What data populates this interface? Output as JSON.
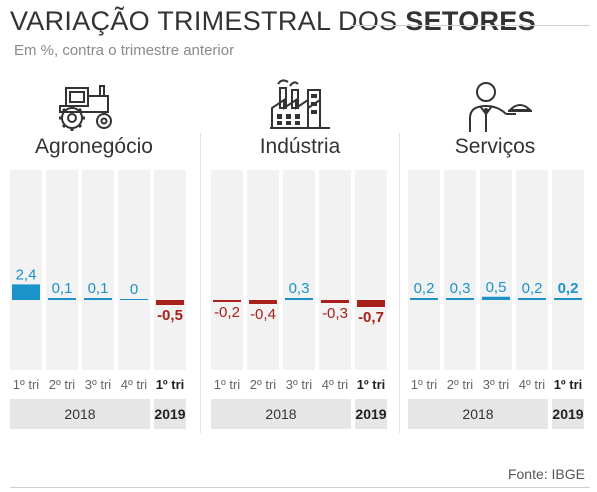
{
  "header": {
    "title_regular": "VARIAÇÃO TRIMESTRAL DOS ",
    "title_bold": "SETORES",
    "subtitle": "Em %, contra o trimestre anterior"
  },
  "source": "Fonte: IBGE",
  "colors": {
    "positive": "#1b93c9",
    "negative": "#a8201a",
    "column_bg": "#f2f2f2",
    "year_band": "#e6e6e6"
  },
  "icons": [
    "tractor-icon",
    "factory-icon",
    "waiter-icon"
  ],
  "chart_data": [
    {
      "type": "bar",
      "title": "Agronegócio",
      "categories": [
        "1º tri",
        "2º tri",
        "3º tri",
        "4º tri",
        "1º tri"
      ],
      "years": [
        "2018",
        "2019"
      ],
      "values": [
        2.4,
        0.1,
        0.1,
        0,
        -0.5
      ],
      "labels": [
        "2,4",
        "0,1",
        "0,1",
        "0",
        "-0,5"
      ]
    },
    {
      "type": "bar",
      "title": "Indústria",
      "categories": [
        "1º tri",
        "2º tri",
        "3º tri",
        "4º tri",
        "1º tri"
      ],
      "years": [
        "2018",
        "2019"
      ],
      "values": [
        -0.2,
        -0.4,
        0.3,
        -0.3,
        -0.7
      ],
      "labels": [
        "-0,2",
        "-0,4",
        "0,3",
        "-0,3",
        "-0,7"
      ]
    },
    {
      "type": "bar",
      "title": "Serviços",
      "categories": [
        "1º tri",
        "2º tri",
        "3º tri",
        "4º tri",
        "1º tri"
      ],
      "years": [
        "2018",
        "2019"
      ],
      "values": [
        0.2,
        0.3,
        0.5,
        0.2,
        0.2
      ],
      "labels": [
        "0,2",
        "0,3",
        "0,5",
        "0,2",
        "0,2"
      ]
    }
  ]
}
